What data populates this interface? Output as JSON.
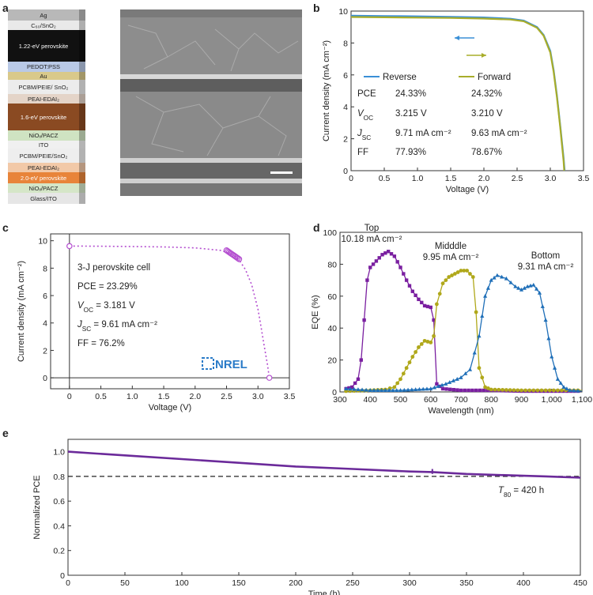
{
  "panel_labels": {
    "a": "a",
    "b": "b",
    "c": "c",
    "d": "d",
    "e": "e"
  },
  "device_stack": {
    "layers": [
      {
        "label": "Ag",
        "color": "#b8b8b8",
        "text_color": "#222222"
      },
      {
        "label": "C₆₀/SnO₂",
        "color": "#e9e9e9",
        "text_color": "#222222"
      },
      {
        "label": "1.22-eV perovskite",
        "color": "#111111",
        "text_color": "#ffffff"
      },
      {
        "label": "PEDOT:PSS",
        "color": "#b9c9e6",
        "text_color": "#222222"
      },
      {
        "label": "Au",
        "color": "#d9c98a",
        "text_color": "#222222"
      },
      {
        "label": "PCBM/PEIE/ SnO₂",
        "color": "#ececec",
        "text_color": "#222222"
      },
      {
        "label": "PEAI-EDAI₂",
        "color": "#e4d4c8",
        "text_color": "#222222"
      },
      {
        "label": "1.6-eV perovskite",
        "color": "#8a4a22",
        "text_color": "#ffffff"
      },
      {
        "label": "NiOₓ/PACZ",
        "color": "#cfe3c2",
        "text_color": "#222222"
      },
      {
        "label": "ITO",
        "color": "#f0f0f0",
        "text_color": "#222222"
      },
      {
        "label": "PCBM/PEIE/SnO₂",
        "color": "#eeeeee",
        "text_color": "#222222"
      },
      {
        "label": "PEAI-EDAI₂",
        "color": "#f2c9a8",
        "text_color": "#222222"
      },
      {
        "label": "2.0-eV perovskite",
        "color": "#e8843a",
        "text_color": "#ffffff"
      },
      {
        "label": "NiOₓ/PACZ",
        "color": "#d5e6c8",
        "text_color": "#222222"
      },
      {
        "label": "Glass/ITO",
        "color": "#e6e6e6",
        "text_color": "#222222"
      }
    ]
  },
  "chart_data": [
    {
      "panel": "b",
      "type": "line",
      "xlabel": "Voltage (V)",
      "ylabel": "Current density (mA cm⁻²)",
      "xlim": [
        0,
        3.5
      ],
      "ylim": [
        0,
        10
      ],
      "xticks": [
        "0",
        "0.5",
        "1.0",
        "1.5",
        "2.0",
        "2.5",
        "3.0",
        "3.5"
      ],
      "yticks": [
        "0",
        "2",
        "4",
        "6",
        "8",
        "10"
      ],
      "series": [
        {
          "name": "Reverse",
          "color": "#3a8fd6",
          "x": [
            0,
            0.5,
            1.0,
            1.5,
            2.0,
            2.4,
            2.6,
            2.8,
            2.9,
            3.0,
            3.05,
            3.1,
            3.15,
            3.2,
            3.215
          ],
          "y": [
            9.71,
            9.69,
            9.67,
            9.64,
            9.6,
            9.52,
            9.4,
            9.0,
            8.5,
            7.5,
            6.3,
            4.7,
            2.8,
            0.8,
            0
          ]
        },
        {
          "name": "Forward",
          "color": "#a8ad2a",
          "x": [
            0,
            0.5,
            1.0,
            1.5,
            2.0,
            2.4,
            2.6,
            2.8,
            2.9,
            3.0,
            3.05,
            3.1,
            3.15,
            3.2,
            3.21
          ],
          "y": [
            9.63,
            9.61,
            9.59,
            9.57,
            9.53,
            9.47,
            9.36,
            8.95,
            8.45,
            7.4,
            6.2,
            4.6,
            2.7,
            0.6,
            0
          ]
        }
      ],
      "table": {
        "headers": [
          "",
          "Reverse",
          "Forward"
        ],
        "rows": [
          {
            "label": "PCE",
            "reverse": "24.33%",
            "forward": "24.32%"
          },
          {
            "label": "V",
            "sub": "OC",
            "reverse": "3.215 V",
            "forward": "3.210 V"
          },
          {
            "label": "J",
            "sub": "SC",
            "reverse": "9.71 mA cm⁻²",
            "forward": "9.63 mA cm⁻²"
          },
          {
            "label": "FF",
            "reverse": "77.93%",
            "forward": "78.67%"
          }
        ]
      }
    },
    {
      "panel": "c",
      "type": "line",
      "xlabel": "Voltage (V)",
      "ylabel": "Current density (mA cm⁻²)",
      "xlim": [
        -0.3,
        3.5
      ],
      "ylim": [
        -0.8,
        10.5
      ],
      "xticks": [
        "0",
        "0.5",
        "1.0",
        "1.5",
        "2.0",
        "2.5",
        "3.0",
        "3.5"
      ],
      "yticks": [
        "0",
        "2",
        "4",
        "6",
        "8",
        "10"
      ],
      "series": [
        {
          "name": "",
          "color": "#b44fd0",
          "x": [
            0,
            0.5,
            1.0,
            1.5,
            2.0,
            2.4,
            2.6,
            2.7,
            2.8,
            2.9,
            3.0,
            3.05,
            3.1,
            3.15,
            3.181
          ],
          "y": [
            9.61,
            9.6,
            9.58,
            9.55,
            9.48,
            9.3,
            9.0,
            8.6,
            7.9,
            6.8,
            5.0,
            3.7,
            2.3,
            1.0,
            0
          ]
        }
      ],
      "annotation": {
        "title": "3-J perovskite cell",
        "pce": "PCE = 23.29%",
        "voc_label": "V",
        "voc_sub": "OC",
        "voc_value": " = 3.181 V",
        "jsc_label": "J",
        "jsc_sub": "SC",
        "jsc_value": " = 9.61 mA cm⁻²",
        "ff": "FF = 76.2%",
        "logo": "NREL"
      }
    },
    {
      "panel": "d",
      "type": "line",
      "xlabel": "Wavelength (nm)",
      "ylabel": "EQE (%)",
      "xlim": [
        300,
        1100
      ],
      "ylim": [
        0,
        100
      ],
      "xticks": [
        "300",
        "400",
        "500",
        "600",
        "700",
        "800",
        "900",
        "1,000",
        "1,100"
      ],
      "yticks": [
        "0",
        "20",
        "40",
        "60",
        "80",
        "100"
      ],
      "series": [
        {
          "name": "Top",
          "current": "10.18 mA cm⁻²",
          "color": "#7a1fa0",
          "x": [
            320,
            340,
            360,
            370,
            380,
            390,
            400,
            420,
            440,
            460,
            480,
            500,
            520,
            540,
            560,
            580,
            600,
            610,
            620,
            640,
            700,
            800,
            900,
            1000,
            1100
          ],
          "y": [
            2,
            3,
            8,
            20,
            45,
            70,
            78,
            82,
            86,
            88,
            85,
            78,
            70,
            63,
            58,
            54,
            53,
            45,
            5,
            2,
            1,
            1,
            0.5,
            0.5,
            0.5
          ]
        },
        {
          "name": "Midddle",
          "current": "9.95 mA cm⁻²",
          "color": "#b0a81a",
          "x": [
            320,
            400,
            450,
            480,
            500,
            520,
            540,
            560,
            580,
            600,
            610,
            620,
            640,
            660,
            680,
            700,
            720,
            740,
            750,
            760,
            780,
            800,
            900,
            1100
          ],
          "y": [
            0.5,
            1,
            1.5,
            3,
            8,
            15,
            22,
            28,
            32,
            31,
            35,
            55,
            68,
            72,
            74,
            76,
            76,
            72,
            50,
            15,
            3,
            1.5,
            1,
            1
          ]
        },
        {
          "name": "Bottom",
          "current": "9.31 mA cm⁻²",
          "color": "#1f6fb8",
          "x": [
            320,
            400,
            500,
            600,
            650,
            700,
            730,
            760,
            780,
            800,
            820,
            850,
            880,
            900,
            920,
            940,
            960,
            980,
            1000,
            1020,
            1040,
            1060,
            1100
          ],
          "y": [
            2,
            1,
            1,
            2,
            5,
            9,
            14,
            35,
            60,
            70,
            73,
            71,
            66,
            64,
            66,
            67,
            62,
            45,
            22,
            8,
            3,
            1,
            0.5
          ]
        }
      ]
    },
    {
      "panel": "e",
      "type": "line",
      "xlabel": "Time (h)",
      "ylabel": "Normalized PCE",
      "xlim": [
        0,
        450
      ],
      "ylim": [
        0,
        1.1
      ],
      "xticks": [
        "0",
        "50",
        "100",
        "150",
        "200",
        "250",
        "300",
        "350",
        "400",
        "450"
      ],
      "yticks": [
        "0",
        "0.2",
        "0.4",
        "0.6",
        "0.8",
        "1.0"
      ],
      "reference_line": 0.8,
      "annotation": {
        "label": "T",
        "sub": "80",
        "value": " = 420 h"
      },
      "series": [
        {
          "name": "",
          "color": "#6b2a9a",
          "x": [
            0,
            25,
            50,
            100,
            150,
            200,
            250,
            300,
            320,
            350,
            400,
            420,
            450
          ],
          "y": [
            1.0,
            0.985,
            0.97,
            0.94,
            0.91,
            0.88,
            0.86,
            0.84,
            0.835,
            0.82,
            0.805,
            0.8,
            0.79
          ]
        }
      ]
    }
  ]
}
